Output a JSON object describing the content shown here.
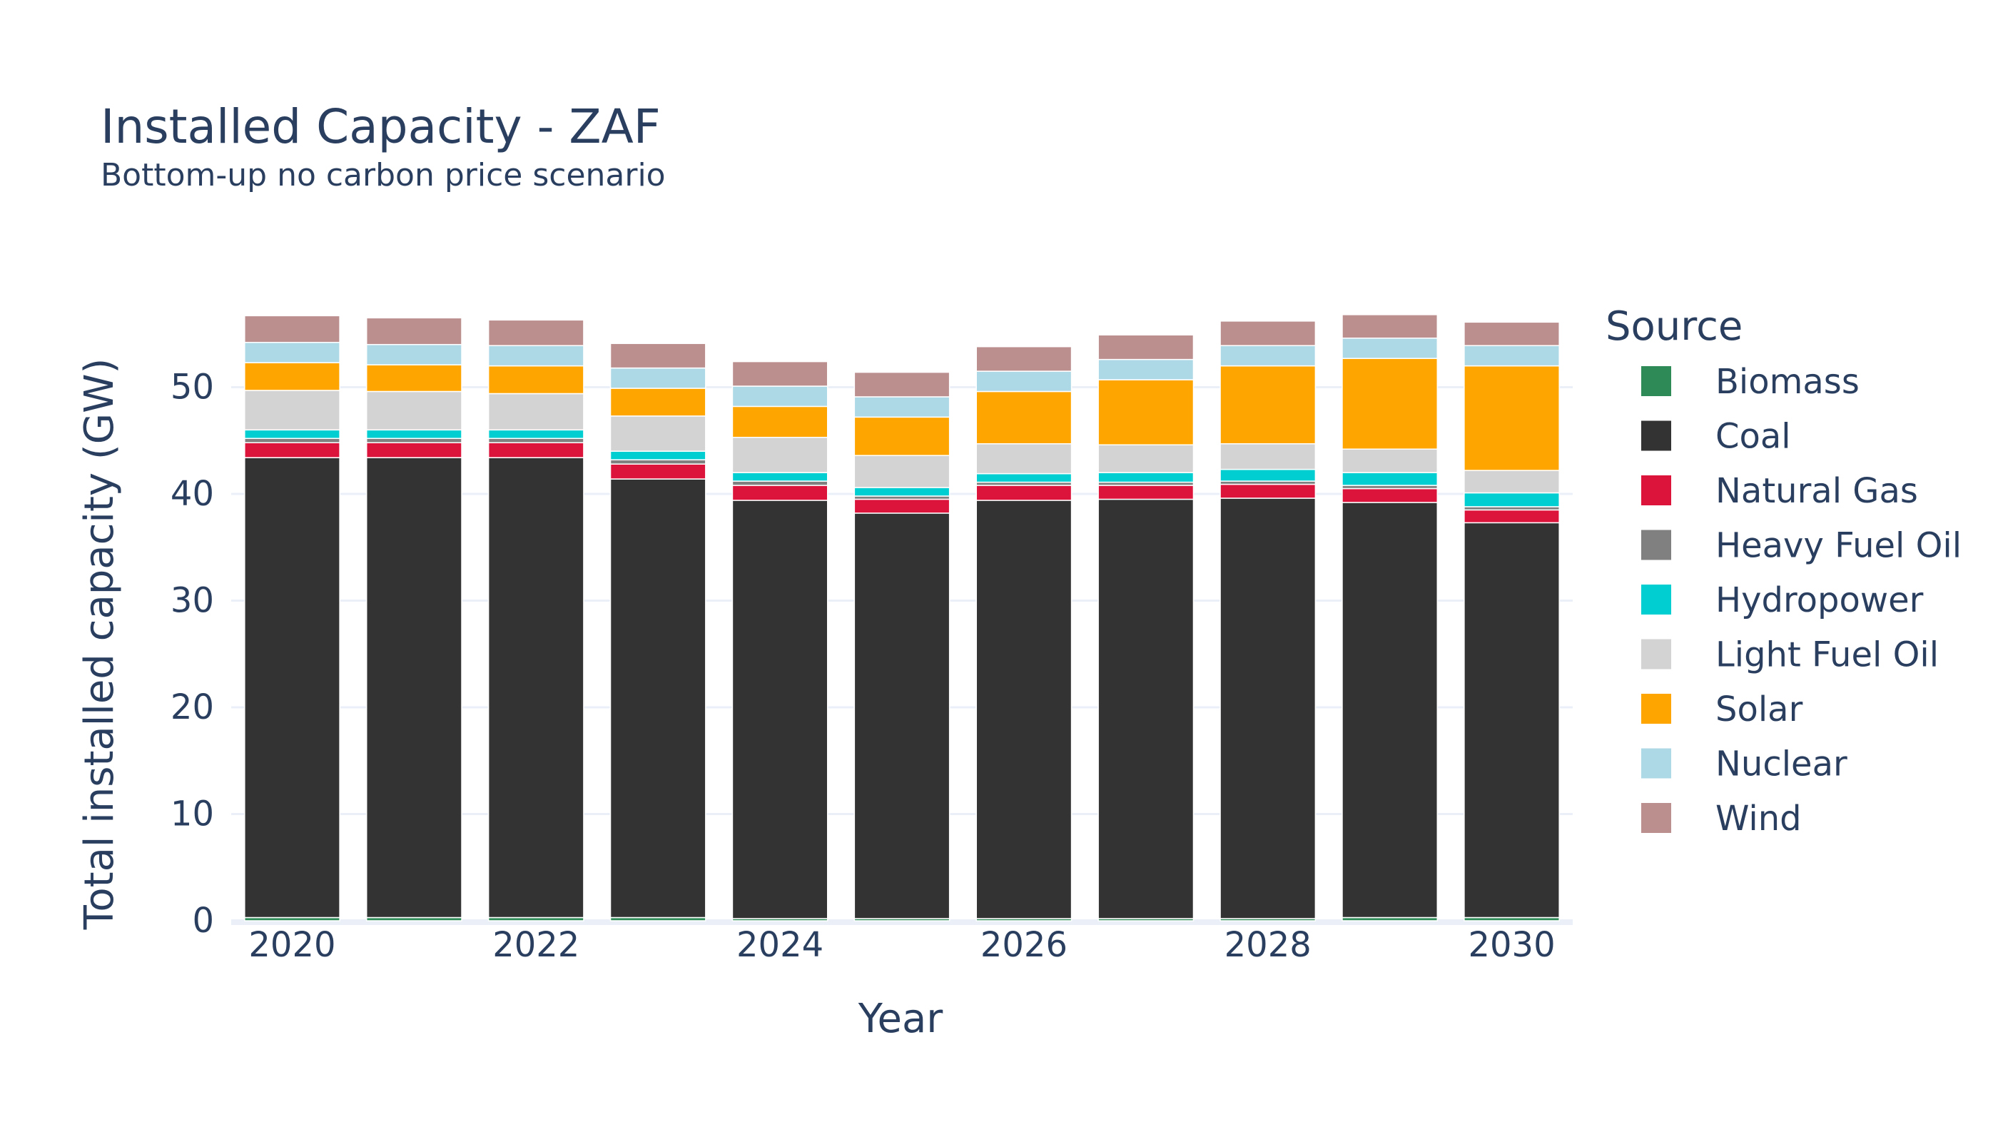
{
  "chart_data": {
    "type": "bar",
    "barmode": "stack",
    "title": "Installed Capacity - ZAF",
    "subtitle": "Bottom-up no carbon price scenario",
    "xlabel": "Year",
    "ylabel": "Total installed capacity (GW)",
    "x": [
      2020,
      2021,
      2022,
      2023,
      2024,
      2025,
      2026,
      2027,
      2028,
      2029,
      2030
    ],
    "x_ticks": [
      "2020",
      "2022",
      "2024",
      "2026",
      "2028",
      "2030"
    ],
    "y_ticks": [
      "0",
      "10",
      "20",
      "30",
      "40",
      "50"
    ],
    "ylim": [
      0,
      60
    ],
    "grid": true,
    "legend": {
      "title": "Source",
      "position": "right"
    },
    "series": [
      {
        "name": "Biomass",
        "color": "#2e8b57",
        "values": [
          0.3,
          0.3,
          0.3,
          0.3,
          0.2,
          0.2,
          0.2,
          0.2,
          0.2,
          0.3,
          0.3
        ]
      },
      {
        "name": "Coal",
        "color": "#333333",
        "values": [
          43.1,
          43.1,
          43.1,
          41.1,
          39.2,
          38.0,
          39.2,
          39.3,
          39.4,
          38.9,
          37.0
        ]
      },
      {
        "name": "Natural Gas",
        "color": "#dc143c",
        "values": [
          1.4,
          1.4,
          1.4,
          1.4,
          1.4,
          1.3,
          1.4,
          1.3,
          1.3,
          1.3,
          1.2
        ]
      },
      {
        "name": "Heavy Fuel Oil",
        "color": "#808080",
        "values": [
          0.4,
          0.4,
          0.4,
          0.4,
          0.4,
          0.3,
          0.3,
          0.3,
          0.3,
          0.3,
          0.3
        ]
      },
      {
        "name": "Hydropower",
        "color": "#00ced1",
        "values": [
          0.8,
          0.8,
          0.8,
          0.8,
          0.8,
          0.8,
          0.8,
          0.9,
          1.1,
          1.2,
          1.3
        ]
      },
      {
        "name": "Light Fuel Oil",
        "color": "#d3d3d3",
        "values": [
          3.7,
          3.6,
          3.4,
          3.3,
          3.3,
          3.0,
          2.8,
          2.6,
          2.4,
          2.2,
          2.1
        ]
      },
      {
        "name": "Solar",
        "color": "#ffa500",
        "values": [
          2.6,
          2.5,
          2.6,
          2.6,
          2.9,
          3.6,
          4.9,
          6.1,
          7.3,
          8.5,
          9.8
        ]
      },
      {
        "name": "Nuclear",
        "color": "#add8e6",
        "values": [
          1.9,
          1.9,
          1.9,
          1.9,
          1.9,
          1.9,
          1.9,
          1.9,
          1.9,
          1.9,
          1.9
        ]
      },
      {
        "name": "Wind",
        "color": "#bc8f8f",
        "values": [
          2.5,
          2.5,
          2.4,
          2.3,
          2.3,
          2.3,
          2.3,
          2.3,
          2.3,
          2.2,
          2.2
        ]
      }
    ]
  }
}
